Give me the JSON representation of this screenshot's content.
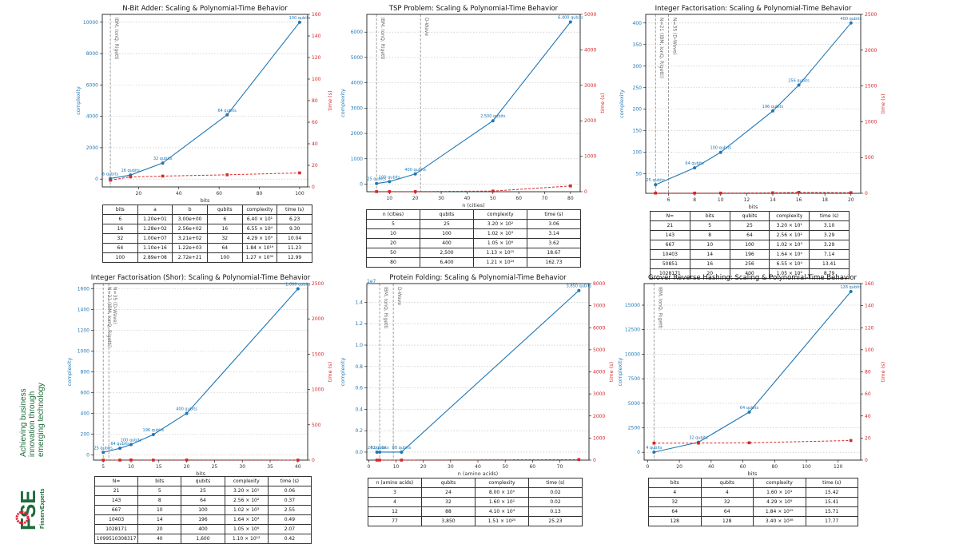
{
  "brand": {
    "tagline_lines": [
      "Achieving business",
      "innovation through",
      "emerging technology"
    ],
    "logo_text": "FSE",
    "logo_subtext": "FinservExperts"
  },
  "colors": {
    "complexity": "#1f77b4",
    "time": "#d62728",
    "brand_green": "#1e6b3c"
  },
  "chart_data": [
    {
      "type": "line",
      "title": "N-Bit Adder: Scaling & Polynomial-Time Behavior",
      "xlabel": "bits",
      "ylabel": "complexity",
      "y2label": "time (s)",
      "xlim": [
        2,
        104
      ],
      "xticks": [
        20,
        40,
        60,
        80,
        100
      ],
      "ylim": [
        -500,
        10500
      ],
      "yticks": [
        0,
        2000,
        4000,
        6000,
        8000,
        10000
      ],
      "y2lim": [
        0,
        160
      ],
      "y2ticks": [
        0,
        20,
        40,
        60,
        80,
        100,
        120,
        140,
        160
      ],
      "vlines": [
        {
          "x": 6,
          "label": "IBM, IonQ, Rigetti"
        }
      ],
      "series": [
        {
          "name": "complexity",
          "x": [
            6,
            16,
            32,
            64,
            100
          ],
          "y": [
            36,
            256,
            1024,
            4096,
            10000
          ],
          "labels": [
            "6 qubits",
            "16 qubits",
            "32 qubits",
            "64 qubits",
            "100 qubits"
          ]
        },
        {
          "name": "time (s)",
          "x": [
            6,
            16,
            32,
            64,
            100
          ],
          "y": [
            6.23,
            9.3,
            10.04,
            11.23,
            12.99
          ]
        }
      ],
      "table": {
        "headers": [
          "bits",
          "a",
          "b",
          "qubits",
          "complexity",
          "time (s)"
        ],
        "rows": [
          [
            "6",
            "1.20e+01",
            "3.00e+00",
            "6",
            "6.40 × 10¹",
            "6.23"
          ],
          [
            "16",
            "1.28e+02",
            "2.56e+02",
            "16",
            "6.55 × 10⁴",
            "9.30"
          ],
          [
            "32",
            "1.00e+07",
            "3.21e+02",
            "32",
            "4.29 × 10⁹",
            "10.04"
          ],
          [
            "64",
            "1.10e+16",
            "1.22e+03",
            "64",
            "1.84 × 10¹⁹",
            "11.23"
          ],
          [
            "100",
            "2.89e+08",
            "2.72e+21",
            "100",
            "1.27 × 10³⁰",
            "12.99"
          ]
        ]
      }
    },
    {
      "type": "line",
      "title": "TSP Problem: Scaling & Polynomial-Time Behavior",
      "xlabel": "n (cities)",
      "ylabel": "complexity",
      "y2label": "time (s)",
      "xlim": [
        1.25,
        83.75
      ],
      "xticks": [
        10,
        20,
        30,
        40,
        50,
        60,
        70,
        80
      ],
      "ylim": [
        -300,
        6700
      ],
      "yticks": [
        0,
        1000,
        2000,
        3000,
        4000,
        5000,
        6000
      ],
      "y2lim": [
        0,
        5000
      ],
      "y2ticks": [
        0,
        1000,
        2000,
        3000,
        4000,
        5000
      ],
      "vlines": [
        {
          "x": 5,
          "label": "IBM, IonQ, Rigetti"
        },
        {
          "x": 22,
          "label": "D-Wave"
        }
      ],
      "series": [
        {
          "name": "complexity",
          "x": [
            5,
            10,
            20,
            50,
            80
          ],
          "y": [
            25,
            100,
            400,
            2500,
            6400
          ],
          "labels": [
            "25 qubits",
            "100 qubits",
            "400 qubits",
            "2,500 qubits",
            "6,400 qubits"
          ]
        },
        {
          "name": "time (s)",
          "x": [
            5,
            10,
            20,
            50,
            80
          ],
          "y": [
            3.06,
            3.14,
            3.62,
            18.67,
            162.73
          ]
        }
      ],
      "table": {
        "headers": [
          "n (cities)",
          "qubits",
          "complexity",
          "time (s)"
        ],
        "rows": [
          [
            "5",
            "25",
            "3.20 × 10²",
            "3.06"
          ],
          [
            "10",
            "100",
            "1.02 × 10³",
            "3.14"
          ],
          [
            "20",
            "400",
            "1.05 × 10⁶",
            "3.62"
          ],
          [
            "50",
            "2,500",
            "1.13 × 10¹⁵",
            "18.67"
          ],
          [
            "80",
            "6,400",
            "1.21 × 10²⁴",
            "162.73"
          ]
        ]
      }
    },
    {
      "type": "line",
      "title": "Integer Factorisation: Scaling & Polynomial-Time Behavior",
      "xlabel": "bits",
      "ylabel": "complexity",
      "y2label": "time (s)",
      "xlim": [
        4.25,
        20.75
      ],
      "xticks": [
        6,
        8,
        10,
        12,
        14,
        16,
        18,
        20
      ],
      "ylim": [
        5,
        420
      ],
      "yticks": [
        50,
        100,
        150,
        200,
        250,
        300,
        350,
        400
      ],
      "y2lim": [
        0,
        2500
      ],
      "y2ticks": [
        0,
        500,
        1000,
        1500,
        2000,
        2500
      ],
      "vlines": [
        {
          "x": 5,
          "label": "N=21 (IBM, IonQ, Rigetti)"
        },
        {
          "x": 6,
          "label": "N=35 (D-Wave)"
        }
      ],
      "series": [
        {
          "name": "complexity",
          "x": [
            5,
            8,
            10,
            14,
            16,
            20
          ],
          "y": [
            25,
            64,
            100,
            196,
            256,
            400
          ],
          "labels": [
            "25 qubits",
            "64 qubits",
            "100 qubits",
            "196 qubits",
            "256 qubits",
            "400 qubits"
          ]
        },
        {
          "name": "time (s)",
          "x": [
            5,
            8,
            10,
            14,
            16,
            20
          ],
          "y": [
            3.1,
            3.29,
            3.29,
            7.14,
            13.41,
            8.79
          ]
        }
      ],
      "table": {
        "headers": [
          "N=",
          "bits",
          "qubits",
          "complexity",
          "time (s)"
        ],
        "rows": [
          [
            "21",
            "5",
            "25",
            "3.20 × 10¹",
            "3.10"
          ],
          [
            "143",
            "8",
            "64",
            "2.56 × 10²",
            "3.29"
          ],
          [
            "667",
            "10",
            "100",
            "1.02 × 10³",
            "3.29"
          ],
          [
            "10403",
            "14",
            "196",
            "1.64 × 10⁴",
            "7.14"
          ],
          [
            "50851",
            "16",
            "256",
            "6.55 × 10⁴",
            "13.41"
          ],
          [
            "1028171",
            "20",
            "400",
            "1.05 × 10⁶",
            "8.79"
          ]
        ]
      }
    },
    {
      "type": "line",
      "title": "Integer Factorisation (Shor): Scaling & Polynomial-Time Behavior",
      "xlabel": "bits",
      "ylabel": "complexity",
      "y2label": "time (s)",
      "xlim": [
        3.25,
        41.75
      ],
      "xticks": [
        5,
        10,
        15,
        20,
        25,
        30,
        35,
        40
      ],
      "ylim": [
        -50,
        1650
      ],
      "yticks": [
        0,
        200,
        400,
        600,
        800,
        1000,
        1200,
        1400,
        1600
      ],
      "y2lim": [
        0,
        2500
      ],
      "y2ticks": [
        0,
        500,
        1000,
        1500,
        2000,
        2500
      ],
      "vlines": [
        {
          "x": 5,
          "label": "N=21 (IBM, IonQ, Rigetti)"
        },
        {
          "x": 6,
          "label": "N=35 (D-Wave)"
        }
      ],
      "series": [
        {
          "name": "complexity",
          "x": [
            5,
            8,
            10,
            14,
            20,
            40
          ],
          "y": [
            25,
            64,
            100,
            196,
            400,
            1600
          ],
          "labels": [
            "25 qubits",
            "64 qubits",
            "100 qubits",
            "196 qubits",
            "400 qubits",
            "1,600 qubits"
          ]
        },
        {
          "name": "time (s)",
          "x": [
            5,
            8,
            10,
            14,
            20,
            40
          ],
          "y": [
            0.06,
            0.37,
            2.55,
            0.49,
            2.07,
            0.42
          ]
        }
      ],
      "table": {
        "headers": [
          "N=",
          "bits",
          "qubits",
          "complexity",
          "time (s)"
        ],
        "rows": [
          [
            "21",
            "5",
            "25",
            "3.20 × 10¹",
            "0.06"
          ],
          [
            "143",
            "8",
            "64",
            "2.56 × 10²",
            "0.37"
          ],
          [
            "667",
            "10",
            "100",
            "1.02 × 10³",
            "2.55"
          ],
          [
            "10403",
            "14",
            "196",
            "1.64 × 10⁴",
            "0.49"
          ],
          [
            "1028171",
            "20",
            "400",
            "1.05 × 10⁶",
            "2.07"
          ],
          [
            "1099510308317",
            "40",
            "1,600",
            "1.10 × 10¹²",
            "0.42"
          ]
        ]
      }
    },
    {
      "type": "line",
      "title": "Protein Folding: Scaling & Polynomial-Time Behavior",
      "xlabel": "n (amino acids)",
      "ylabel": "complexity",
      "y2label": "time (s)",
      "yoffset_label": "1e7",
      "xlim": [
        -0.7,
        80.7
      ],
      "xticks": [
        0,
        10,
        20,
        30,
        40,
        50,
        60,
        70
      ],
      "ylim": [
        -0.075,
        1.575
      ],
      "yticks": [
        0.0,
        0.2,
        0.4,
        0.6,
        0.8,
        1.0,
        1.2,
        1.4
      ],
      "y2lim": [
        0,
        8000
      ],
      "y2ticks": [
        0,
        1000,
        2000,
        3000,
        4000,
        5000,
        6000,
        7000,
        8000
      ],
      "vlines": [
        {
          "x": 4,
          "label": "IBM, IonQ, Rigetti"
        },
        {
          "x": 9,
          "label": "D-Wave"
        }
      ],
      "series": [
        {
          "name": "complexity",
          "x": [
            3,
            4,
            12,
            77
          ],
          "y": [
            8e-07,
            1.6e-06,
            4.1e-05,
            1.51
          ],
          "labels": [
            "24 qubits",
            "32 qubits",
            "88 qubits",
            "3,850 qubits"
          ]
        },
        {
          "name": "time (s)",
          "x": [
            3,
            4,
            12,
            77
          ],
          "y": [
            0.02,
            0.02,
            0.13,
            25.23
          ]
        }
      ],
      "table": {
        "headers": [
          "n (amino acids)",
          "qubits",
          "complexity",
          "time (s)"
        ],
        "rows": [
          [
            "3",
            "24",
            "8.00 × 10⁰",
            "0.02"
          ],
          [
            "4",
            "32",
            "1.60 × 10¹",
            "0.02"
          ],
          [
            "12",
            "88",
            "4.10 × 10³",
            "0.13"
          ],
          [
            "77",
            "3,850",
            "1.51 × 10²⁵",
            "25.23"
          ]
        ]
      }
    },
    {
      "type": "line",
      "title": "Grover Reverse Hashing: Scaling & Polynomial-Time Behavior",
      "xlabel": "bits",
      "ylabel": "complexity",
      "y2label": "time (s)",
      "xlim": [
        -2.2,
        134.2
      ],
      "xticks": [
        0,
        20,
        40,
        60,
        80,
        100,
        120
      ],
      "ylim": [
        -800,
        17200
      ],
      "yticks": [
        0,
        2500,
        5000,
        7500,
        10000,
        12500,
        15000
      ],
      "y2lim": [
        0,
        160
      ],
      "y2ticks": [
        0,
        20,
        40,
        60,
        80,
        100,
        120,
        140,
        160
      ],
      "vlines": [
        {
          "x": 4,
          "label": "IBM, IonQ, Rigetti"
        }
      ],
      "series": [
        {
          "name": "complexity",
          "x": [
            4,
            32,
            64,
            128
          ],
          "y": [
            16,
            1024,
            4096,
            16384
          ],
          "labels": [
            "4 qubits",
            "32 qubits",
            "64 qubits",
            "128 qubits"
          ]
        },
        {
          "name": "time (s)",
          "x": [
            4,
            32,
            64,
            128
          ],
          "y": [
            15.42,
            15.41,
            15.71,
            17.77
          ]
        }
      ],
      "table": {
        "headers": [
          "bits",
          "qubits",
          "complexity",
          "time (s)"
        ],
        "rows": [
          [
            "4",
            "4",
            "1.60 × 10¹",
            "15.42"
          ],
          [
            "32",
            "32",
            "4.29 × 10⁹",
            "15.41"
          ],
          [
            "64",
            "64",
            "1.84 × 10¹⁹",
            "15.71"
          ],
          [
            "128",
            "128",
            "3.40 × 10³⁸",
            "17.77"
          ]
        ]
      }
    }
  ]
}
